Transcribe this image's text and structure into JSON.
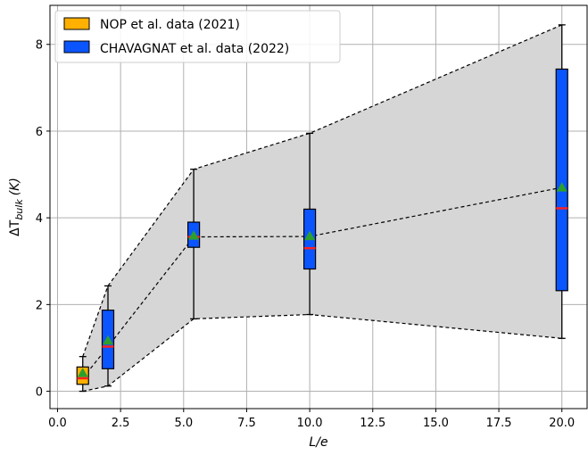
{
  "chart_data": {
    "type": "box",
    "xlabel": "L/e",
    "ylabel_main": "ΔT",
    "ylabel_sub": "bulk",
    "ylabel_unit": "(K)",
    "xlim": [
      -0.3,
      21.0
    ],
    "ylim": [
      -0.4,
      8.9
    ],
    "xticks": [
      0.0,
      2.5,
      5.0,
      7.5,
      10.0,
      12.5,
      15.0,
      17.5,
      20.0
    ],
    "xtick_labels": [
      "0.0",
      "2.5",
      "5.0",
      "7.5",
      "10.0",
      "12.5",
      "15.0",
      "17.5",
      "20.0"
    ],
    "yticks": [
      0,
      2,
      4,
      6,
      8
    ],
    "ytick_labels": [
      "0",
      "2",
      "4",
      "6",
      "8"
    ],
    "grid": true,
    "legend_position": "top-left",
    "series": [
      {
        "name": "NOP et al. data (2021)",
        "color": "#ffb000",
        "boxes": [
          {
            "x": 1.0,
            "whisker_low": 0.0,
            "q1": 0.16,
            "median": 0.3,
            "mean": 0.42,
            "q3": 0.56,
            "whisker_high": 0.8
          }
        ]
      },
      {
        "name": "CHAVAGNAT et al. data (2022)",
        "color": "#0b55ff",
        "boxes": [
          {
            "x": 2.0,
            "whisker_low": 0.12,
            "q1": 0.52,
            "median": 1.03,
            "mean": 1.17,
            "q3": 1.87,
            "whisker_high": 2.43
          },
          {
            "x": 5.4,
            "whisker_low": 1.67,
            "q1": 3.32,
            "median": 3.56,
            "mean": 3.59,
            "q3": 3.9,
            "whisker_high": 5.12
          },
          {
            "x": 10.0,
            "whisker_low": 1.77,
            "q1": 2.82,
            "median": 3.3,
            "mean": 3.58,
            "q3": 4.2,
            "whisker_high": 5.95
          },
          {
            "x": 20.0,
            "whisker_low": 1.22,
            "q1": 2.32,
            "median": 4.22,
            "mean": 4.7,
            "q3": 7.43,
            "whisker_high": 8.45
          }
        ]
      }
    ],
    "envelope": {
      "x": [
        1.0,
        2.0,
        5.4,
        10.0,
        20.0
      ],
      "upper": [
        0.8,
        2.43,
        5.12,
        5.95,
        8.45
      ],
      "middle": [
        0.3,
        1.03,
        3.56,
        3.57,
        4.7
      ],
      "lower": [
        0.0,
        0.12,
        1.67,
        1.77,
        1.22
      ],
      "fill_color": "#d6d6d6"
    },
    "median_color": "#ff2020",
    "mean_marker_color": "#2ca02c"
  }
}
